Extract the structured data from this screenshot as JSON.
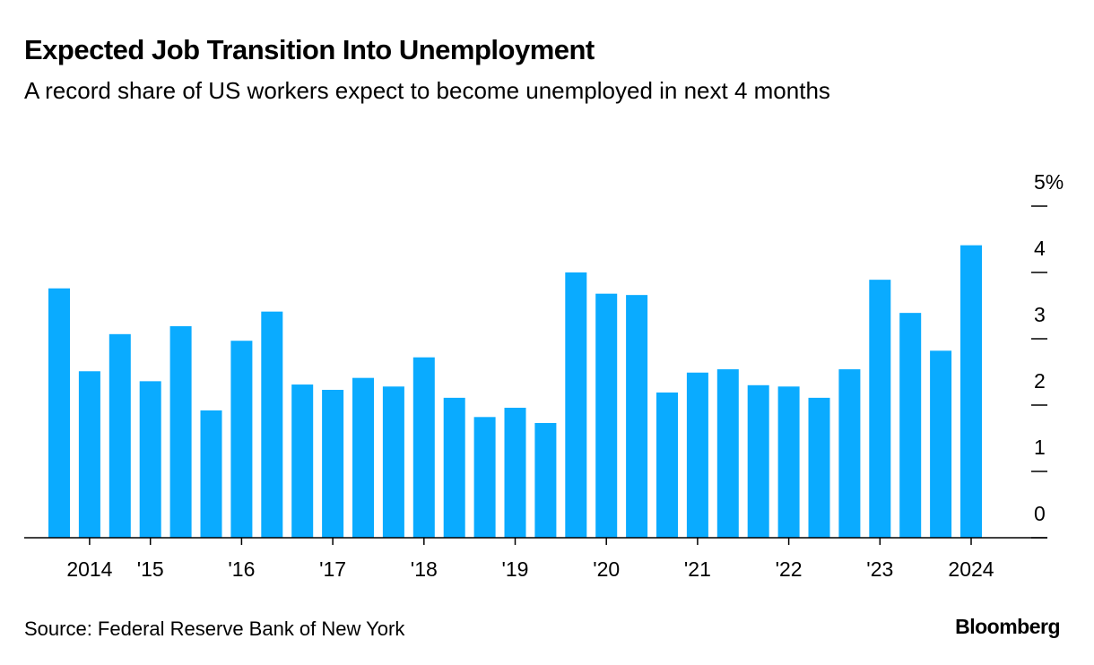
{
  "chart_data": {
    "type": "bar",
    "title": "Expected Job Transition Into Unemployment",
    "subtitle": "A record share of US workers expect to become unemployed in next 4 months",
    "source": "Source: Federal Reserve Bank of New York",
    "credit": "Bloomberg",
    "categories": [
      null,
      "2014",
      null,
      "'15",
      null,
      null,
      "'16",
      null,
      null,
      "'17",
      null,
      null,
      "'18",
      null,
      null,
      "'19",
      null,
      null,
      "'20",
      null,
      null,
      "'21",
      null,
      null,
      "'22",
      null,
      null,
      "'23",
      null,
      null,
      "2024"
    ],
    "values": [
      3.76,
      2.51,
      3.07,
      2.36,
      3.19,
      1.92,
      2.97,
      3.41,
      2.31,
      2.23,
      2.41,
      2.28,
      2.72,
      2.11,
      1.82,
      1.96,
      1.73,
      4.0,
      3.68,
      3.66,
      2.19,
      2.49,
      2.54,
      2.3,
      2.28,
      2.11,
      2.54,
      3.89,
      3.39,
      2.82,
      4.41
    ],
    "color": "#0aabff",
    "ylim": [
      0,
      5
    ],
    "yticks": [
      0,
      1,
      2,
      3,
      4,
      {
        "value": 5,
        "label": "5%"
      }
    ]
  }
}
